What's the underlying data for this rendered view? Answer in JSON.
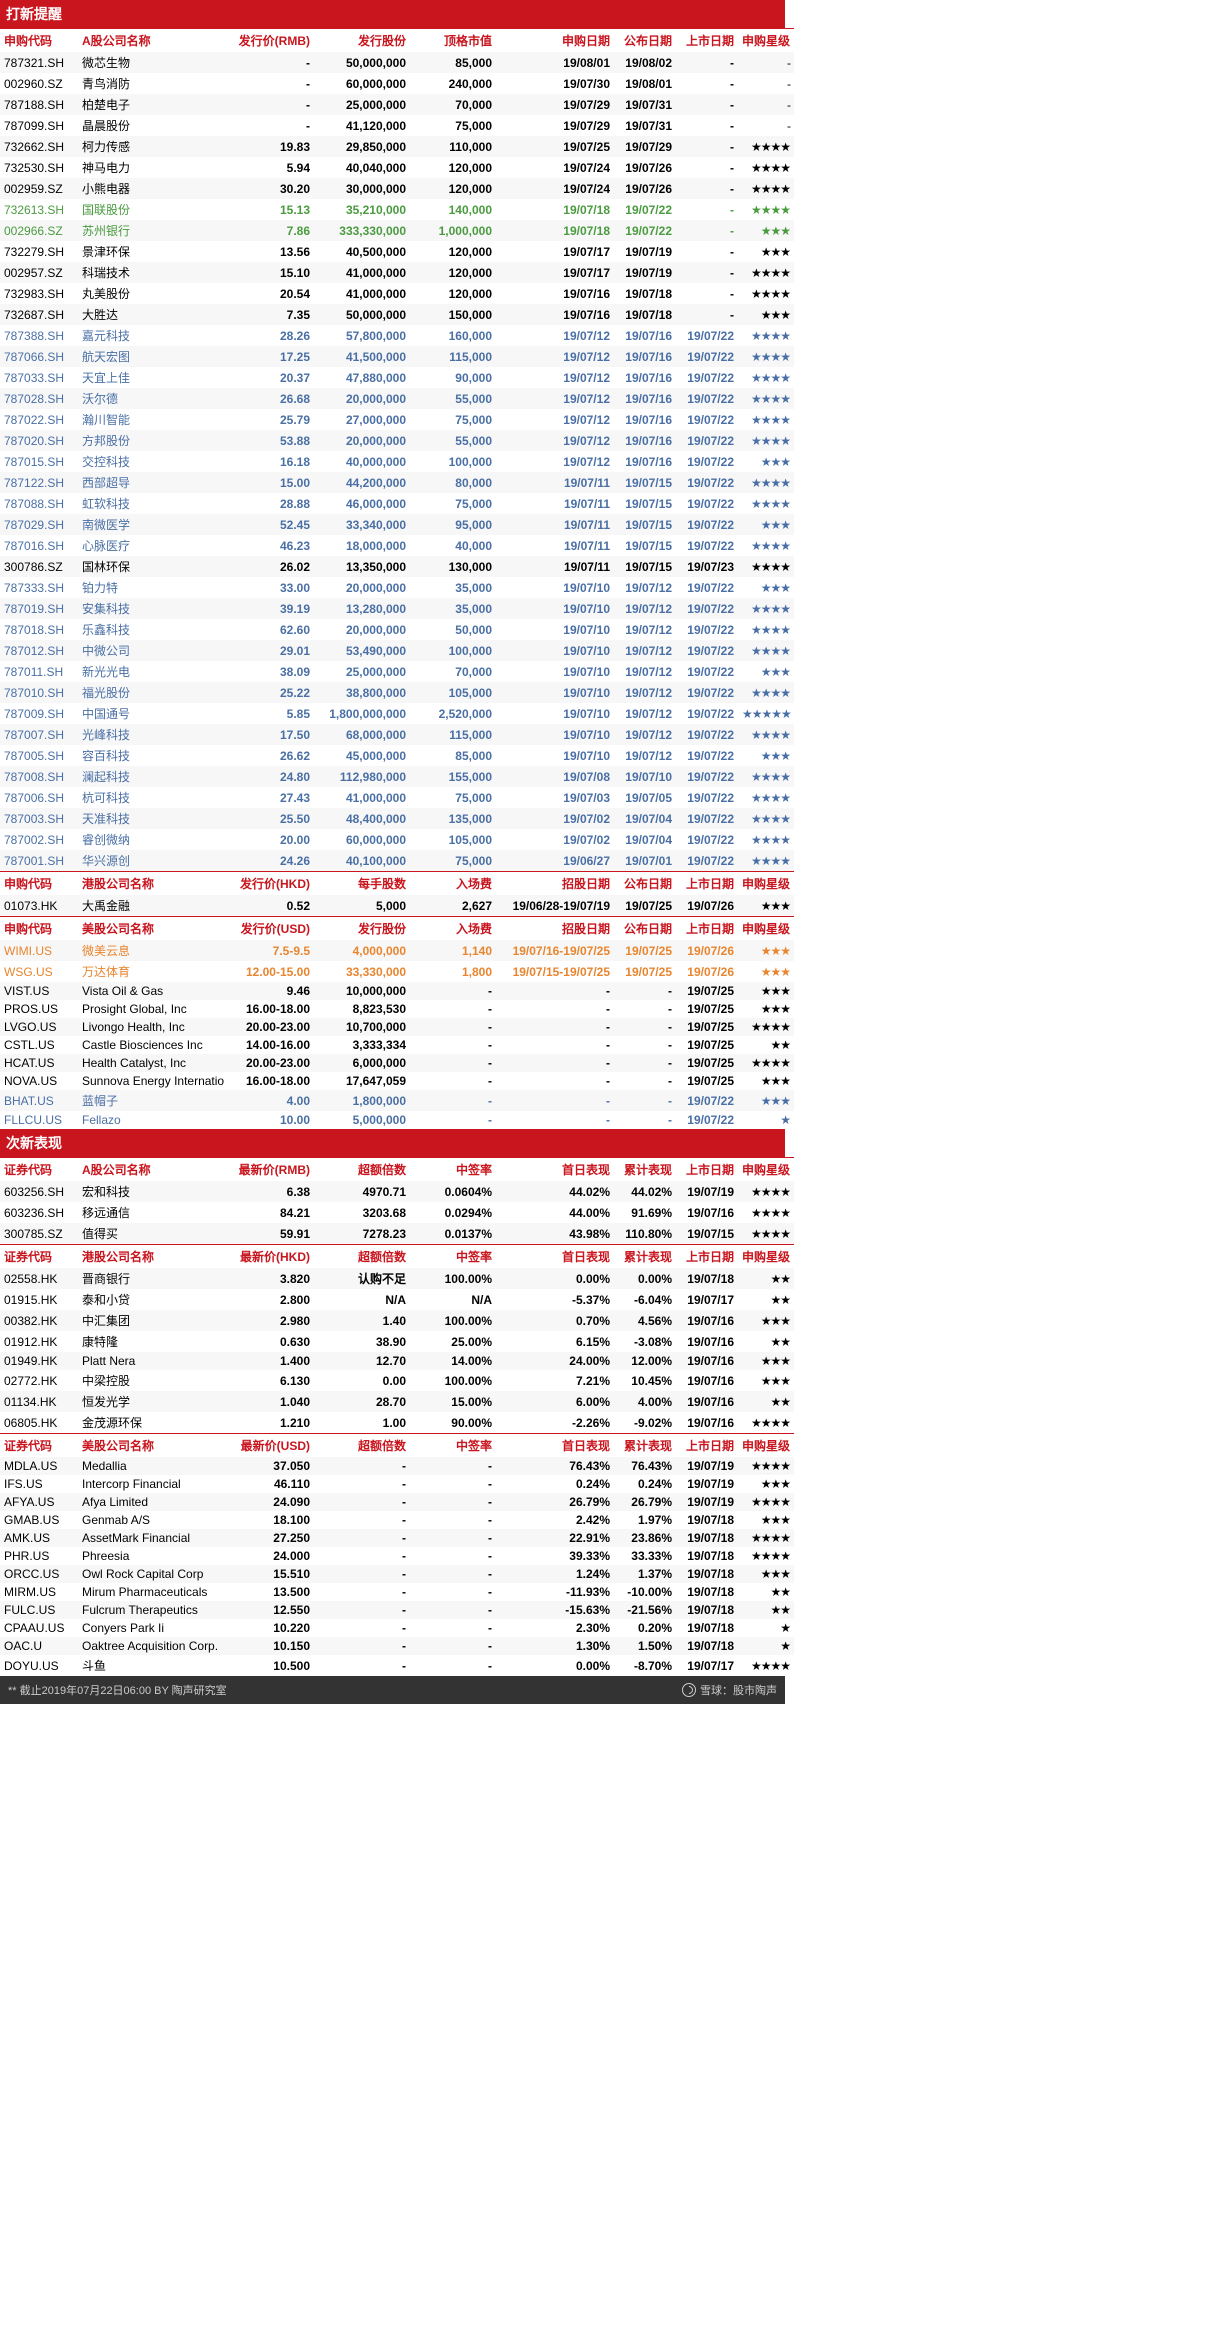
{
  "headers": {
    "new": "打新提醒",
    "next": "次新表现"
  },
  "cols_a": [
    "申购代码",
    "A股公司名称",
    "发行价(RMB)",
    "发行股份",
    "顶格市值",
    "申购日期",
    "公布日期",
    "上市日期",
    "申购星级"
  ],
  "cols_hk": [
    "申购代码",
    "港股公司名称",
    "发行价(HKD)",
    "每手股数",
    "入场费",
    "招股日期",
    "公布日期",
    "上市日期",
    "申购星级"
  ],
  "cols_us": [
    "申购代码",
    "美股公司名称",
    "发行价(USD)",
    "发行股份",
    "入场费",
    "招股日期",
    "公布日期",
    "上市日期",
    "申购星级"
  ],
  "cols_na": [
    "证券代码",
    "A股公司名称",
    "最新价(RMB)",
    "超额倍数",
    "中签率",
    "首日表现",
    "累计表现",
    "上市日期",
    "申购星级"
  ],
  "cols_nhk": [
    "证券代码",
    "港股公司名称",
    "最新价(HKD)",
    "超额倍数",
    "中签率",
    "首日表现",
    "累计表现",
    "上市日期",
    "申购星级"
  ],
  "cols_nus": [
    "证券代码",
    "美股公司名称",
    "最新价(USD)",
    "超额倍数",
    "中签率",
    "首日表现",
    "累计表现",
    "上市日期",
    "申购星级"
  ],
  "a_rows": [
    [
      "787321.SH",
      "微芯生物",
      "-",
      "50,000,000",
      "85,000",
      "19/08/01",
      "19/08/02",
      "-",
      "-",
      "black"
    ],
    [
      "002960.SZ",
      "青鸟消防",
      "-",
      "60,000,000",
      "240,000",
      "19/07/30",
      "19/08/01",
      "-",
      "-",
      "black"
    ],
    [
      "787188.SH",
      "柏楚电子",
      "-",
      "25,000,000",
      "70,000",
      "19/07/29",
      "19/07/31",
      "-",
      "-",
      "black"
    ],
    [
      "787099.SH",
      "晶晨股份",
      "-",
      "41,120,000",
      "75,000",
      "19/07/29",
      "19/07/31",
      "-",
      "-",
      "black"
    ],
    [
      "732662.SH",
      "柯力传感",
      "19.83",
      "29,850,000",
      "110,000",
      "19/07/25",
      "19/07/29",
      "-",
      "★★★★",
      "black"
    ],
    [
      "732530.SH",
      "神马电力",
      "5.94",
      "40,040,000",
      "120,000",
      "19/07/24",
      "19/07/26",
      "-",
      "★★★★",
      "black"
    ],
    [
      "002959.SZ",
      "小熊电器",
      "30.20",
      "30,000,000",
      "120,000",
      "19/07/24",
      "19/07/26",
      "-",
      "★★★★",
      "black"
    ],
    [
      "732613.SH",
      "国联股份",
      "15.13",
      "35,210,000",
      "140,000",
      "19/07/18",
      "19/07/22",
      "-",
      "★★★★",
      "green"
    ],
    [
      "002966.SZ",
      "苏州银行",
      "7.86",
      "333,330,000",
      "1,000,000",
      "19/07/18",
      "19/07/22",
      "-",
      "★★★",
      "green"
    ],
    [
      "732279.SH",
      "景津环保",
      "13.56",
      "40,500,000",
      "120,000",
      "19/07/17",
      "19/07/19",
      "-",
      "★★★",
      "black"
    ],
    [
      "002957.SZ",
      "科瑞技术",
      "15.10",
      "41,000,000",
      "120,000",
      "19/07/17",
      "19/07/19",
      "-",
      "★★★★",
      "black"
    ],
    [
      "732983.SH",
      "丸美股份",
      "20.54",
      "41,000,000",
      "120,000",
      "19/07/16",
      "19/07/18",
      "-",
      "★★★★",
      "black"
    ],
    [
      "732687.SH",
      "大胜达",
      "7.35",
      "50,000,000",
      "150,000",
      "19/07/16",
      "19/07/18",
      "-",
      "★★★",
      "black"
    ],
    [
      "787388.SH",
      "嘉元科技",
      "28.26",
      "57,800,000",
      "160,000",
      "19/07/12",
      "19/07/16",
      "19/07/22",
      "★★★★",
      "blue"
    ],
    [
      "787066.SH",
      "航天宏图",
      "17.25",
      "41,500,000",
      "115,000",
      "19/07/12",
      "19/07/16",
      "19/07/22",
      "★★★★",
      "blue"
    ],
    [
      "787033.SH",
      "天宜上佳",
      "20.37",
      "47,880,000",
      "90,000",
      "19/07/12",
      "19/07/16",
      "19/07/22",
      "★★★★",
      "blue"
    ],
    [
      "787028.SH",
      "沃尔德",
      "26.68",
      "20,000,000",
      "55,000",
      "19/07/12",
      "19/07/16",
      "19/07/22",
      "★★★★",
      "blue"
    ],
    [
      "787022.SH",
      "瀚川智能",
      "25.79",
      "27,000,000",
      "75,000",
      "19/07/12",
      "19/07/16",
      "19/07/22",
      "★★★★",
      "blue"
    ],
    [
      "787020.SH",
      "方邦股份",
      "53.88",
      "20,000,000",
      "55,000",
      "19/07/12",
      "19/07/16",
      "19/07/22",
      "★★★★",
      "blue"
    ],
    [
      "787015.SH",
      "交控科技",
      "16.18",
      "40,000,000",
      "100,000",
      "19/07/12",
      "19/07/16",
      "19/07/22",
      "★★★",
      "blue"
    ],
    [
      "787122.SH",
      "西部超导",
      "15.00",
      "44,200,000",
      "80,000",
      "19/07/11",
      "19/07/15",
      "19/07/22",
      "★★★★",
      "blue"
    ],
    [
      "787088.SH",
      "虹软科技",
      "28.88",
      "46,000,000",
      "75,000",
      "19/07/11",
      "19/07/15",
      "19/07/22",
      "★★★★",
      "blue"
    ],
    [
      "787029.SH",
      "南微医学",
      "52.45",
      "33,340,000",
      "95,000",
      "19/07/11",
      "19/07/15",
      "19/07/22",
      "★★★",
      "blue"
    ],
    [
      "787016.SH",
      "心脉医疗",
      "46.23",
      "18,000,000",
      "40,000",
      "19/07/11",
      "19/07/15",
      "19/07/22",
      "★★★★",
      "blue"
    ],
    [
      "300786.SZ",
      "国林环保",
      "26.02",
      "13,350,000",
      "130,000",
      "19/07/11",
      "19/07/15",
      "19/07/23",
      "★★★★",
      "black"
    ],
    [
      "787333.SH",
      "铂力特",
      "33.00",
      "20,000,000",
      "35,000",
      "19/07/10",
      "19/07/12",
      "19/07/22",
      "★★★",
      "blue"
    ],
    [
      "787019.SH",
      "安集科技",
      "39.19",
      "13,280,000",
      "35,000",
      "19/07/10",
      "19/07/12",
      "19/07/22",
      "★★★★",
      "blue"
    ],
    [
      "787018.SH",
      "乐鑫科技",
      "62.60",
      "20,000,000",
      "50,000",
      "19/07/10",
      "19/07/12",
      "19/07/22",
      "★★★★",
      "blue"
    ],
    [
      "787012.SH",
      "中微公司",
      "29.01",
      "53,490,000",
      "100,000",
      "19/07/10",
      "19/07/12",
      "19/07/22",
      "★★★★",
      "blue"
    ],
    [
      "787011.SH",
      "新光光电",
      "38.09",
      "25,000,000",
      "70,000",
      "19/07/10",
      "19/07/12",
      "19/07/22",
      "★★★",
      "blue"
    ],
    [
      "787010.SH",
      "福光股份",
      "25.22",
      "38,800,000",
      "105,000",
      "19/07/10",
      "19/07/12",
      "19/07/22",
      "★★★★",
      "blue"
    ],
    [
      "787009.SH",
      "中国通号",
      "5.85",
      "1,800,000,000",
      "2,520,000",
      "19/07/10",
      "19/07/12",
      "19/07/22",
      "★★★★★",
      "blue"
    ],
    [
      "787007.SH",
      "光峰科技",
      "17.50",
      "68,000,000",
      "115,000",
      "19/07/10",
      "19/07/12",
      "19/07/22",
      "★★★★",
      "blue"
    ],
    [
      "787005.SH",
      "容百科技",
      "26.62",
      "45,000,000",
      "85,000",
      "19/07/10",
      "19/07/12",
      "19/07/22",
      "★★★",
      "blue"
    ],
    [
      "787008.SH",
      "澜起科技",
      "24.80",
      "112,980,000",
      "155,000",
      "19/07/08",
      "19/07/10",
      "19/07/22",
      "★★★★",
      "blue"
    ],
    [
      "787006.SH",
      "杭可科技",
      "27.43",
      "41,000,000",
      "75,000",
      "19/07/03",
      "19/07/05",
      "19/07/22",
      "★★★★",
      "blue"
    ],
    [
      "787003.SH",
      "天准科技",
      "25.50",
      "48,400,000",
      "135,000",
      "19/07/02",
      "19/07/04",
      "19/07/22",
      "★★★★",
      "blue"
    ],
    [
      "787002.SH",
      "睿创微纳",
      "20.00",
      "60,000,000",
      "105,000",
      "19/07/02",
      "19/07/04",
      "19/07/22",
      "★★★★",
      "blue"
    ],
    [
      "787001.SH",
      "华兴源创",
      "24.26",
      "40,100,000",
      "75,000",
      "19/06/27",
      "19/07/01",
      "19/07/22",
      "★★★★",
      "blue"
    ]
  ],
  "hk_rows": [
    [
      "01073.HK",
      "大禹金融",
      "0.52",
      "5,000",
      "2,627",
      "19/06/28-19/07/19",
      "19/07/25",
      "19/07/26",
      "★★★",
      "black"
    ]
  ],
  "us_rows": [
    [
      "WIMI.US",
      "微美云息",
      "7.5-9.5",
      "4,000,000",
      "1,140",
      "19/07/16-19/07/25",
      "19/07/25",
      "19/07/26",
      "★★★",
      "orange"
    ],
    [
      "WSG.US",
      "万达体育",
      "12.00-15.00",
      "33,330,000",
      "1,800",
      "19/07/15-19/07/25",
      "19/07/25",
      "19/07/26",
      "★★★",
      "orange"
    ],
    [
      "VIST.US",
      "Vista Oil & Gas",
      "9.46",
      "10,000,000",
      "-",
      "-",
      "-",
      "19/07/25",
      "★★★",
      "black"
    ],
    [
      "PROS.US",
      "Prosight Global, Inc",
      "16.00-18.00",
      "8,823,530",
      "-",
      "-",
      "-",
      "19/07/25",
      "★★★",
      "black"
    ],
    [
      "LVGO.US",
      "Livongo Health, Inc",
      "20.00-23.00",
      "10,700,000",
      "-",
      "-",
      "-",
      "19/07/25",
      "★★★★",
      "black"
    ],
    [
      "CSTL.US",
      "Castle Biosciences Inc",
      "14.00-16.00",
      "3,333,334",
      "-",
      "-",
      "-",
      "19/07/25",
      "★★",
      "black"
    ],
    [
      "HCAT.US",
      "Health Catalyst, Inc",
      "20.00-23.00",
      "6,000,000",
      "-",
      "-",
      "-",
      "19/07/25",
      "★★★★",
      "black"
    ],
    [
      "NOVA.US",
      "Sunnova Energy Internatio",
      "16.00-18.00",
      "17,647,059",
      "-",
      "-",
      "-",
      "19/07/25",
      "★★★",
      "black"
    ],
    [
      "BHAT.US",
      "蓝帽子",
      "4.00",
      "1,800,000",
      "-",
      "-",
      "-",
      "19/07/22",
      "★★★",
      "blue"
    ],
    [
      "FLLCU.US",
      "Fellazo",
      "10.00",
      "5,000,000",
      "-",
      "-",
      "-",
      "19/07/22",
      "★",
      "blue"
    ]
  ],
  "na_rows": [
    [
      "603256.SH",
      "宏和科技",
      "6.38",
      "4970.71",
      "0.0604%",
      "44.02%",
      "44.02%",
      "19/07/19",
      "★★★★",
      "black"
    ],
    [
      "603236.SH",
      "移远通信",
      "84.21",
      "3203.68",
      "0.0294%",
      "44.00%",
      "91.69%",
      "19/07/16",
      "★★★★",
      "black"
    ],
    [
      "300785.SZ",
      "值得买",
      "59.91",
      "7278.23",
      "0.0137%",
      "43.98%",
      "110.80%",
      "19/07/15",
      "★★★★",
      "black"
    ]
  ],
  "nhk_rows": [
    [
      "02558.HK",
      "晋商银行",
      "3.820",
      "认购不足",
      "100.00%",
      "0.00%",
      "0.00%",
      "19/07/18",
      "★★",
      "black"
    ],
    [
      "01915.HK",
      "泰和小贷",
      "2.800",
      "N/A",
      "N/A",
      "-5.37%",
      "-6.04%",
      "19/07/17",
      "★★",
      "black"
    ],
    [
      "00382.HK",
      "中汇集团",
      "2.980",
      "1.40",
      "100.00%",
      "0.70%",
      "4.56%",
      "19/07/16",
      "★★★",
      "black"
    ],
    [
      "01912.HK",
      "康特隆",
      "0.630",
      "38.90",
      "25.00%",
      "6.15%",
      "-3.08%",
      "19/07/16",
      "★★",
      "black"
    ],
    [
      "01949.HK",
      "Platt Nera",
      "1.400",
      "12.70",
      "14.00%",
      "24.00%",
      "12.00%",
      "19/07/16",
      "★★★",
      "black"
    ],
    [
      "02772.HK",
      "中梁控股",
      "6.130",
      "0.00",
      "100.00%",
      "7.21%",
      "10.45%",
      "19/07/16",
      "★★★",
      "black"
    ],
    [
      "01134.HK",
      "恒发光学",
      "1.040",
      "28.70",
      "15.00%",
      "6.00%",
      "4.00%",
      "19/07/16",
      "★★",
      "black"
    ],
    [
      "06805.HK",
      "金茂源环保",
      "1.210",
      "1.00",
      "90.00%",
      "-2.26%",
      "-9.02%",
      "19/07/16",
      "★★★★",
      "black"
    ]
  ],
  "nus_rows": [
    [
      "MDLA.US",
      "Medallia",
      "37.050",
      "-",
      "-",
      "76.43%",
      "76.43%",
      "19/07/19",
      "★★★★",
      "black"
    ],
    [
      "IFS.US",
      "Intercorp Financial",
      "46.110",
      "-",
      "-",
      "0.24%",
      "0.24%",
      "19/07/19",
      "★★★",
      "black"
    ],
    [
      "AFYA.US",
      "Afya Limited",
      "24.090",
      "-",
      "-",
      "26.79%",
      "26.79%",
      "19/07/19",
      "★★★★",
      "black"
    ],
    [
      "GMAB.US",
      "Genmab A/S",
      "18.100",
      "-",
      "-",
      "2.42%",
      "1.97%",
      "19/07/18",
      "★★★",
      "black"
    ],
    [
      "AMK.US",
      "AssetMark Financial",
      "27.250",
      "-",
      "-",
      "22.91%",
      "23.86%",
      "19/07/18",
      "★★★★",
      "black"
    ],
    [
      "PHR.US",
      "Phreesia",
      "24.000",
      "-",
      "-",
      "39.33%",
      "33.33%",
      "19/07/18",
      "★★★★",
      "black"
    ],
    [
      "ORCC.US",
      "Owl Rock Capital Corp",
      "15.510",
      "-",
      "-",
      "1.24%",
      "1.37%",
      "19/07/18",
      "★★★",
      "black"
    ],
    [
      "MIRM.US",
      "Mirum Pharmaceuticals",
      "13.500",
      "-",
      "-",
      "-11.93%",
      "-10.00%",
      "19/07/18",
      "★★",
      "black"
    ],
    [
      "FULC.US",
      "Fulcrum Therapeutics",
      "12.550",
      "-",
      "-",
      "-15.63%",
      "-21.56%",
      "19/07/18",
      "★★",
      "black"
    ],
    [
      "CPAAU.US",
      "Conyers Park Ii",
      "10.220",
      "-",
      "-",
      "2.30%",
      "0.20%",
      "19/07/18",
      "★",
      "black"
    ],
    [
      "OAC.U",
      "Oaktree Acquisition Corp.",
      "10.150",
      "-",
      "-",
      "1.30%",
      "1.50%",
      "19/07/18",
      "★",
      "black"
    ],
    [
      "DOYU.US",
      "斗鱼",
      "10.500",
      "-",
      "-",
      "0.00%",
      "-8.70%",
      "19/07/17",
      "★★★★",
      "black"
    ]
  ],
  "footer": {
    "left": "** 截止2019年07月22日06:00 BY 陶声研究室",
    "right": "雪球：股市陶声"
  },
  "widths": [
    78,
    148,
    88,
    96,
    86,
    118,
    62,
    62,
    56
  ]
}
